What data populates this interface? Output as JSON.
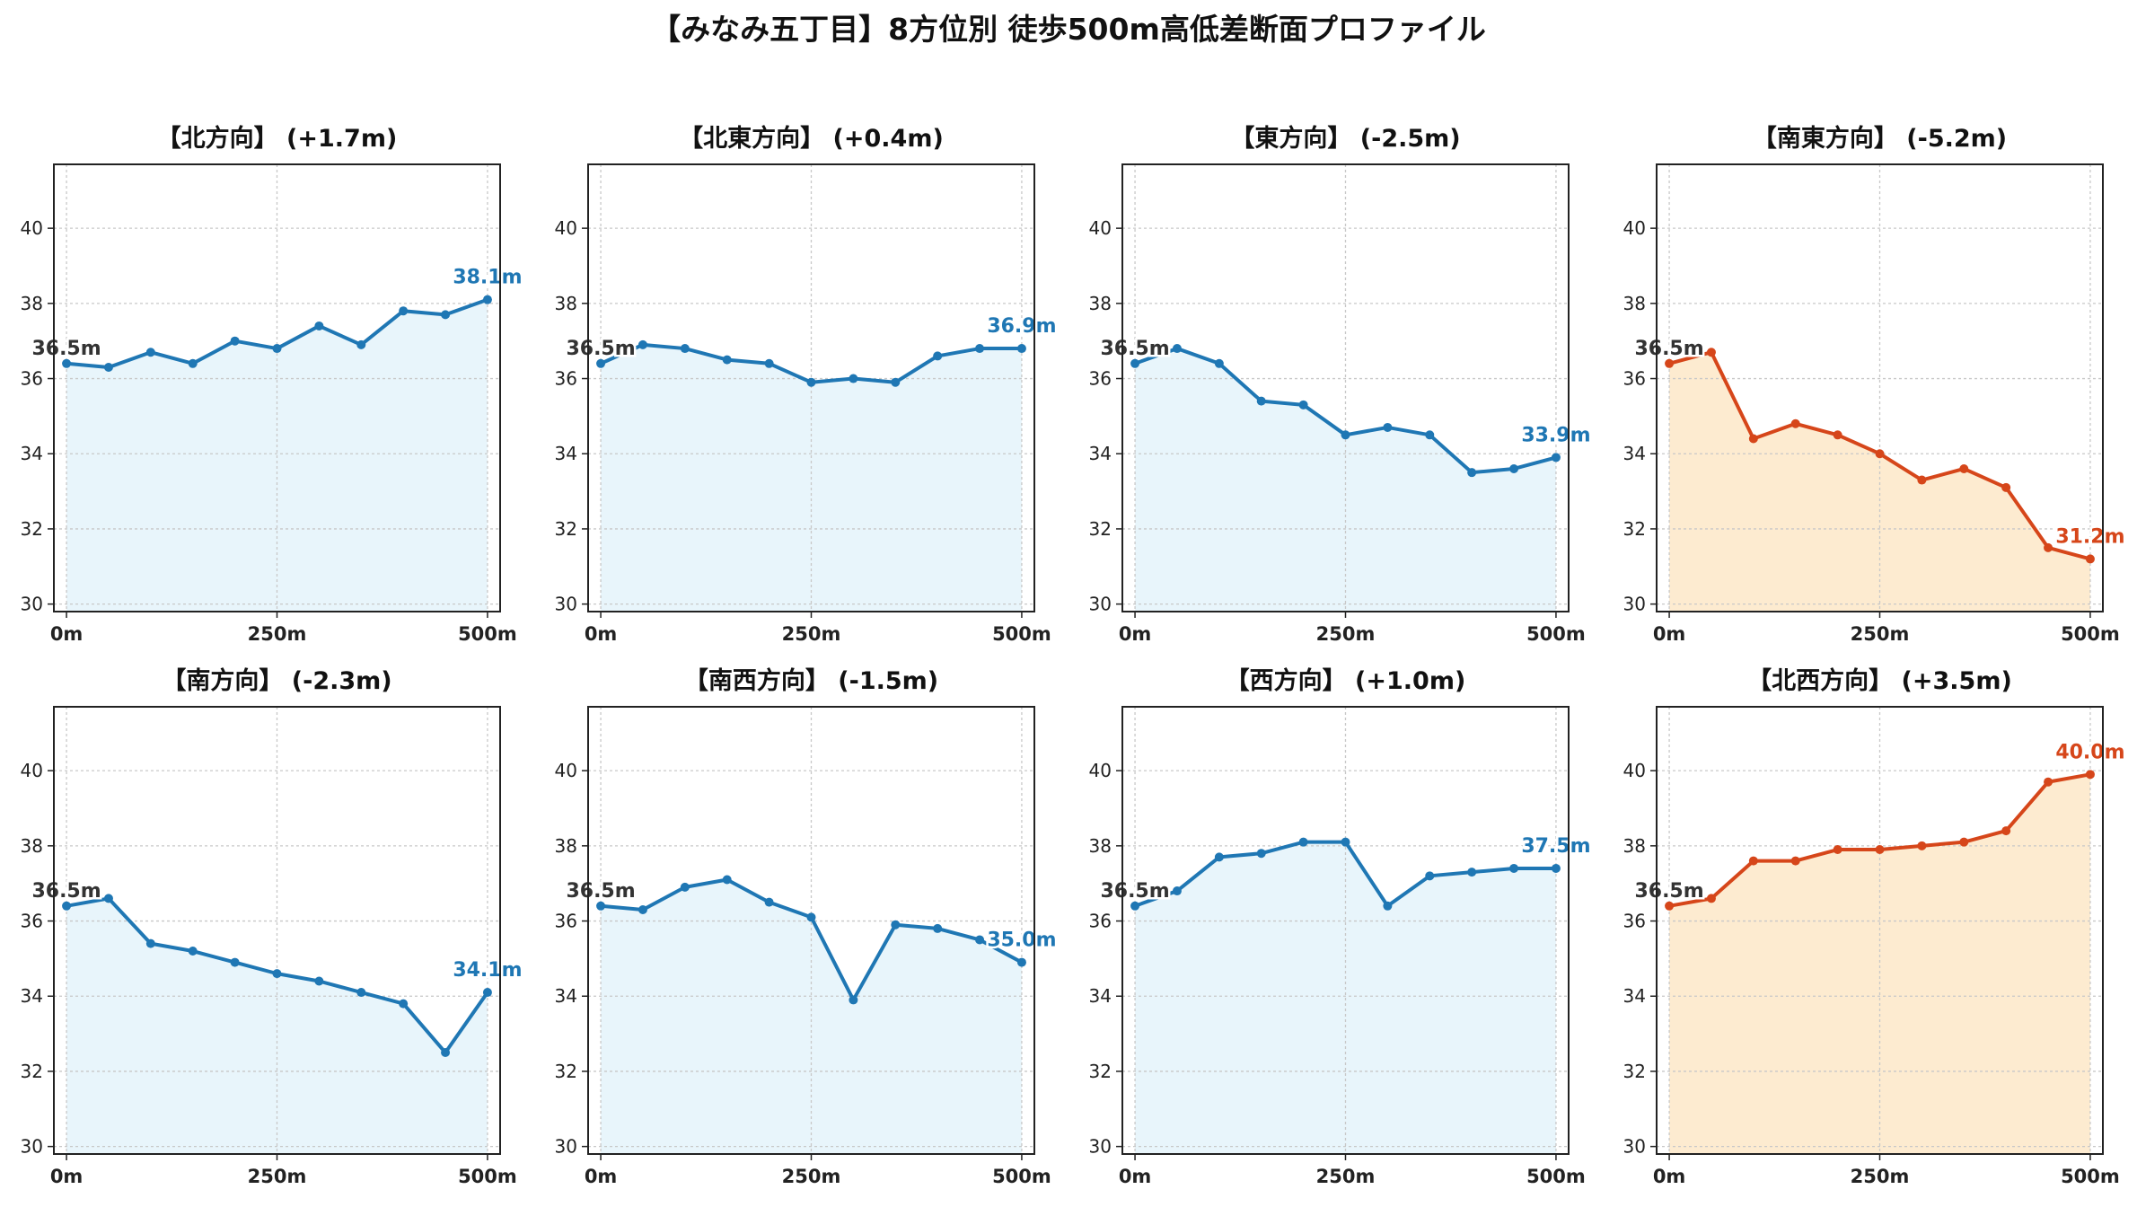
{
  "figure_title": "【みなみ五丁目】8方位別 徒歩500m高低差断面プロファイル",
  "colors": {
    "up_line": "#1f77b4",
    "down_line": "#d6461a",
    "up_fill": "#e8f5fb",
    "down_fill": "#fdebd0",
    "start_label": "#333333",
    "grid": "#c8c8c8"
  },
  "chart_data": [
    {
      "type": "area",
      "title": "【北方向】 (+1.7m)",
      "x": [
        0,
        50,
        100,
        150,
        200,
        250,
        300,
        350,
        400,
        450,
        500
      ],
      "values": [
        36.4,
        36.3,
        36.7,
        36.4,
        37.0,
        36.8,
        37.4,
        36.9,
        37.8,
        37.7,
        38.1
      ],
      "start_label": "36.5m",
      "end_label": "38.1m",
      "highlight": false,
      "xticks": [
        "0m",
        "250m",
        "500m"
      ],
      "yticks": [
        "30",
        "32",
        "34",
        "36",
        "38",
        "40"
      ],
      "xlim": [
        0,
        500
      ],
      "ylim": [
        29.8,
        41.7
      ],
      "grid": true
    },
    {
      "type": "area",
      "title": "【北東方向】 (+0.4m)",
      "x": [
        0,
        50,
        100,
        150,
        200,
        250,
        300,
        350,
        400,
        450,
        500
      ],
      "values": [
        36.4,
        36.9,
        36.8,
        36.5,
        36.4,
        35.9,
        36.0,
        35.9,
        36.6,
        36.8,
        36.8
      ],
      "start_label": "36.5m",
      "end_label": "36.9m",
      "highlight": false,
      "xticks": [
        "0m",
        "250m",
        "500m"
      ],
      "yticks": [
        "30",
        "32",
        "34",
        "36",
        "38",
        "40"
      ],
      "xlim": [
        0,
        500
      ],
      "ylim": [
        29.8,
        41.7
      ],
      "grid": true
    },
    {
      "type": "area",
      "title": "【東方向】 (-2.5m)",
      "x": [
        0,
        50,
        100,
        150,
        200,
        250,
        300,
        350,
        400,
        450,
        500
      ],
      "values": [
        36.4,
        36.8,
        36.4,
        35.4,
        35.3,
        34.5,
        34.7,
        34.5,
        33.5,
        33.6,
        33.9
      ],
      "start_label": "36.5m",
      "end_label": "33.9m",
      "highlight": false,
      "xticks": [
        "0m",
        "250m",
        "500m"
      ],
      "yticks": [
        "30",
        "32",
        "34",
        "36",
        "38",
        "40"
      ],
      "xlim": [
        0,
        500
      ],
      "ylim": [
        29.8,
        41.7
      ],
      "grid": true
    },
    {
      "type": "area",
      "title": "【南東方向】 (-5.2m)",
      "x": [
        0,
        50,
        100,
        150,
        200,
        250,
        300,
        350,
        400,
        450,
        500
      ],
      "values": [
        36.4,
        36.7,
        34.4,
        34.8,
        34.5,
        34.0,
        33.3,
        33.6,
        33.1,
        31.5,
        31.2
      ],
      "start_label": "36.5m",
      "end_label": "31.2m",
      "highlight": true,
      "xticks": [
        "0m",
        "250m",
        "500m"
      ],
      "yticks": [
        "30",
        "32",
        "34",
        "36",
        "38",
        "40"
      ],
      "xlim": [
        0,
        500
      ],
      "ylim": [
        29.8,
        41.7
      ],
      "grid": true
    },
    {
      "type": "area",
      "title": "【南方向】 (-2.3m)",
      "x": [
        0,
        50,
        100,
        150,
        200,
        250,
        300,
        350,
        400,
        450,
        500
      ],
      "values": [
        36.4,
        36.6,
        35.4,
        35.2,
        34.9,
        34.6,
        34.4,
        34.1,
        33.8,
        32.5,
        34.1
      ],
      "start_label": "36.5m",
      "end_label": "34.1m",
      "highlight": false,
      "xticks": [
        "0m",
        "250m",
        "500m"
      ],
      "yticks": [
        "30",
        "32",
        "34",
        "36",
        "38",
        "40"
      ],
      "xlim": [
        0,
        500
      ],
      "ylim": [
        29.8,
        41.7
      ],
      "grid": true
    },
    {
      "type": "area",
      "title": "【南西方向】 (-1.5m)",
      "x": [
        0,
        50,
        100,
        150,
        200,
        250,
        300,
        350,
        400,
        450,
        500
      ],
      "values": [
        36.4,
        36.3,
        36.9,
        37.1,
        36.5,
        36.1,
        33.9,
        35.9,
        35.8,
        35.5,
        34.9
      ],
      "start_label": "36.5m",
      "end_label": "35.0m",
      "highlight": false,
      "xticks": [
        "0m",
        "250m",
        "500m"
      ],
      "yticks": [
        "30",
        "32",
        "34",
        "36",
        "38",
        "40"
      ],
      "xlim": [
        0,
        500
      ],
      "ylim": [
        29.8,
        41.7
      ],
      "grid": true
    },
    {
      "type": "area",
      "title": "【西方向】 (+1.0m)",
      "x": [
        0,
        50,
        100,
        150,
        200,
        250,
        300,
        350,
        400,
        450,
        500
      ],
      "values": [
        36.4,
        36.8,
        37.7,
        37.8,
        38.1,
        38.1,
        36.4,
        37.2,
        37.3,
        37.4,
        37.4
      ],
      "start_label": "36.5m",
      "end_label": "37.5m",
      "highlight": false,
      "xticks": [
        "0m",
        "250m",
        "500m"
      ],
      "yticks": [
        "30",
        "32",
        "34",
        "36",
        "38",
        "40"
      ],
      "xlim": [
        0,
        500
      ],
      "ylim": [
        29.8,
        41.7
      ],
      "grid": true
    },
    {
      "type": "area",
      "title": "【北西方向】 (+3.5m)",
      "x": [
        0,
        50,
        100,
        150,
        200,
        250,
        300,
        350,
        400,
        450,
        500
      ],
      "values": [
        36.4,
        36.6,
        37.6,
        37.6,
        37.9,
        37.9,
        38.0,
        38.1,
        38.4,
        39.7,
        39.9
      ],
      "start_label": "36.5m",
      "end_label": "40.0m",
      "highlight": true,
      "xticks": [
        "0m",
        "250m",
        "500m"
      ],
      "yticks": [
        "30",
        "32",
        "34",
        "36",
        "38",
        "40"
      ],
      "xlim": [
        0,
        500
      ],
      "ylim": [
        29.8,
        41.7
      ],
      "grid": true
    }
  ]
}
